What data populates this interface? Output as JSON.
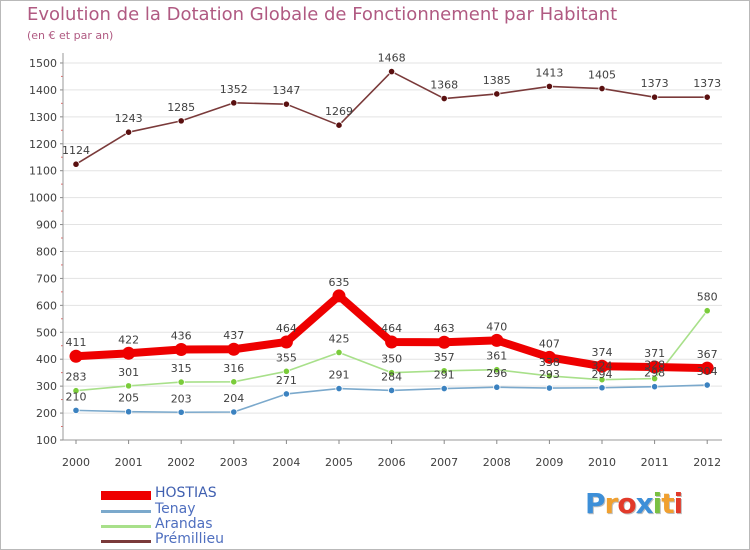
{
  "chart_data": {
    "type": "line",
    "title": "Evolution de la Dotation Globale de Fonctionnement par Habitant",
    "subtitle": "(en € et par an)",
    "xlabel": "",
    "ylabel": "",
    "ylim": [
      100,
      1500
    ],
    "yticks": [
      100,
      200,
      300,
      400,
      500,
      600,
      700,
      800,
      900,
      1000,
      1100,
      1200,
      1300,
      1400,
      1500
    ],
    "grid": true,
    "legend_position": "bottom-left",
    "x": [
      "2000",
      "2001",
      "2002",
      "2003",
      "2004",
      "2005",
      "2006",
      "2007",
      "2008",
      "2009",
      "2010",
      "2011",
      "2012"
    ],
    "series": [
      {
        "name": "Prémillieu",
        "color": "#7a3a3a",
        "marker": "#5a1010",
        "values": [
          1124,
          1243,
          1285,
          1352,
          1347,
          1269,
          1468,
          1368,
          1385,
          1413,
          1405,
          1373,
          1373
        ]
      },
      {
        "name": "Arandas",
        "color": "#a8e08a",
        "marker": "#7acc3a",
        "values": [
          283,
          301,
          315,
          316,
          355,
          425,
          350,
          357,
          361,
          338,
          324,
          328,
          580
        ]
      },
      {
        "name": "Tenay",
        "color": "#7ba9cc",
        "marker": "#3b82c0",
        "values": [
          210,
          205,
          203,
          204,
          271,
          291,
          284,
          291,
          296,
          293,
          294,
          298,
          304
        ]
      },
      {
        "name": "HOSTIAS",
        "color": "#ee0000",
        "marker": "#ee0000",
        "values": [
          411,
          422,
          436,
          437,
          464,
          635,
          464,
          463,
          470,
          407,
          374,
          371,
          367
        ]
      }
    ],
    "data_labels": {
      "Prémillieu": [
        "1124",
        "1243",
        "1285",
        "1352",
        "1347",
        "1269",
        "1468",
        "1368",
        "1385",
        "1413",
        "1405",
        "1373",
        "1373"
      ],
      "HOSTIAS": [
        "411",
        "422",
        "436",
        "437",
        "464",
        "635",
        "464",
        "463",
        "470",
        "407",
        "374",
        "371",
        "367"
      ],
      "Arandas": [
        "283",
        "301",
        "315",
        "316",
        "355",
        "425",
        "350",
        "357",
        "361",
        "338",
        "324",
        "328",
        "580"
      ],
      "Tenay": [
        "210",
        "205",
        "203",
        "204",
        "271",
        "291",
        "284",
        "291",
        "296",
        "293",
        "294",
        "298",
        "304"
      ]
    }
  },
  "legend": [
    {
      "name": "HOSTIAS",
      "color": "#ee0000"
    },
    {
      "name": "Tenay",
      "color": "#7ba9cc"
    },
    {
      "name": "Arandas",
      "color": "#a8e08a"
    },
    {
      "name": "Prémillieu",
      "color": "#7a3a3a"
    }
  ],
  "logo": {
    "letters": [
      "P",
      "r",
      "o",
      "x",
      "i",
      "t",
      "i"
    ],
    "colors": [
      "#3d8fd8",
      "#f0a030",
      "#e23a2a",
      "#3d8fd8",
      "#7ac142",
      "#f0a030",
      "#e23a2a"
    ]
  },
  "colors": {
    "title": "#b05a82",
    "grid": "#e3e3e3",
    "axis_text": "#404040"
  }
}
